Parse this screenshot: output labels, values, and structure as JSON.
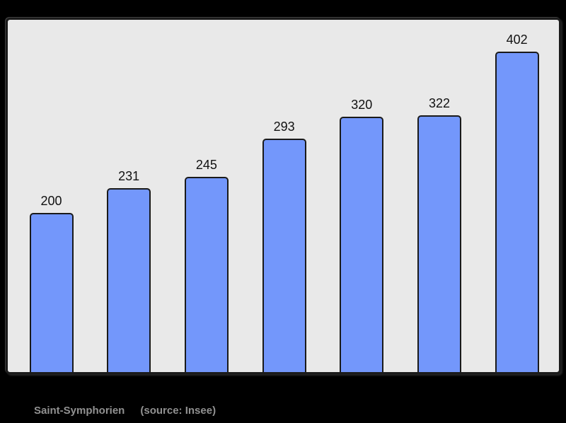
{
  "page": {
    "outer_background": "#000000"
  },
  "caption": {
    "title": "Saint-Symphorien",
    "source": "(source: Insee)"
  },
  "chart_data": {
    "type": "bar",
    "values": [
      200,
      231,
      245,
      293,
      320,
      322,
      402
    ],
    "data_labels": [
      "200",
      "231",
      "245",
      "293",
      "320",
      "322",
      "402"
    ],
    "title": "",
    "xlabel": "",
    "ylabel": "",
    "ylim": [
      0,
      442
    ],
    "grid": false,
    "legend": false,
    "axis_tick_labels_visible": false,
    "bar_color": "#7397fb",
    "bar_border_color": "#1a1a1a",
    "label_color": "#111111",
    "plot_background": "#e9e9e9",
    "plot_border_color": "#1b1b1b",
    "caption_color": "#919191"
  }
}
